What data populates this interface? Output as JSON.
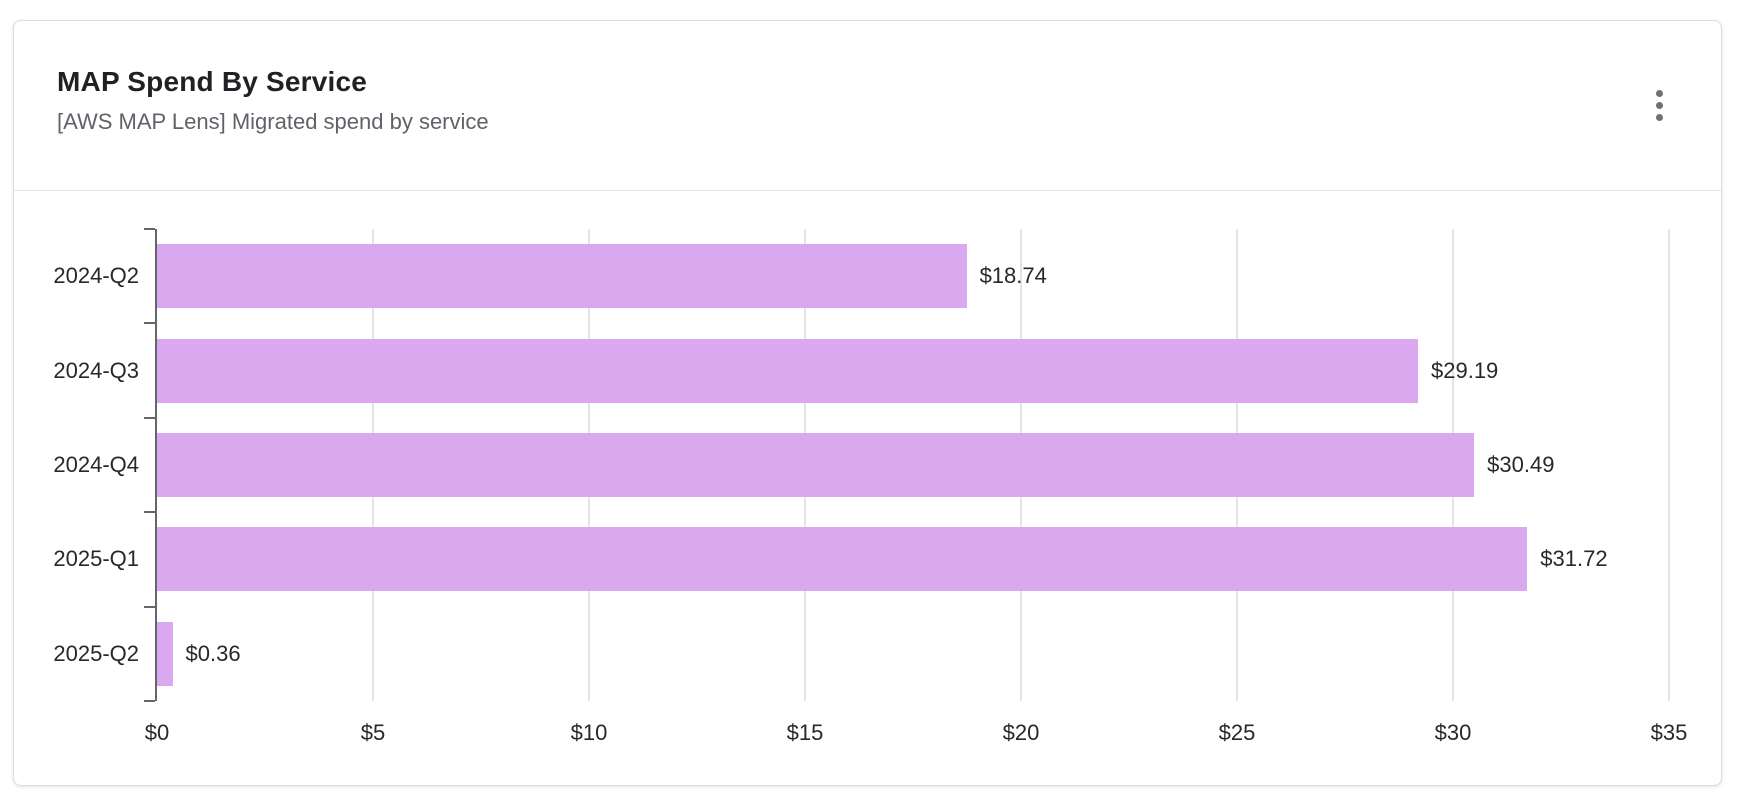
{
  "card": {
    "title": "MAP Spend By Service",
    "subtitle": "[AWS MAP Lens] Migrated spend by service",
    "menu_icon": "kebab-menu"
  },
  "chart_data": {
    "type": "bar",
    "orientation": "horizontal",
    "title": "MAP Spend By Service",
    "subtitle": "[AWS MAP Lens] Migrated spend by service",
    "categories": [
      "2024-Q2",
      "2024-Q3",
      "2024-Q4",
      "2025-Q1",
      "2025-Q2"
    ],
    "values": [
      18.74,
      29.19,
      30.49,
      31.72,
      0.36
    ],
    "value_labels": [
      "$18.74",
      "$29.19",
      "$30.49",
      "$31.72",
      "$0.36"
    ],
    "xlabel": "",
    "ylabel": "",
    "x_axis": {
      "min": 0,
      "max": 35,
      "ticks": [
        {
          "value": 0,
          "label": "$0"
        },
        {
          "value": 5,
          "label": "$5"
        },
        {
          "value": 10,
          "label": "$10"
        },
        {
          "value": 15,
          "label": "$15"
        },
        {
          "value": 20,
          "label": "$20"
        },
        {
          "value": 25,
          "label": "$25"
        },
        {
          "value": 30,
          "label": "$30"
        },
        {
          "value": 35,
          "label": "$35"
        }
      ]
    },
    "grid": true,
    "legend": false,
    "bar_color": "#d9a8ee",
    "grid_color": "#e4e4e6",
    "axis_color": "#63666a",
    "label_color": "#26282b"
  }
}
